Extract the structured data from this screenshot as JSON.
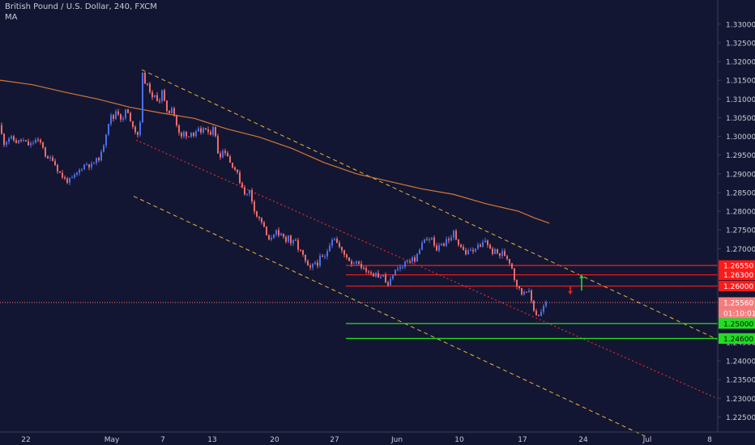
{
  "header": {
    "symbol_line": "British Pound / U.S. Dollar, 240, FXCM",
    "indicator": "MA"
  },
  "colors": {
    "background": "#131632",
    "up_candle": "#4a6fe8",
    "down_candle": "#ef6b6b",
    "ma": "#d3773a",
    "resistance": "#ff1a1a",
    "support": "#22dd22",
    "channel": "#e6b53c",
    "midline": "#ff3030",
    "price_tag": "#f77d7d",
    "axis_text": "#c9cbd6"
  },
  "chart_data": {
    "type": "candlestick",
    "ylim": [
      1.221,
      1.336
    ],
    "x_tick_labels": [
      "22",
      "May",
      "7",
      "13",
      "20",
      "27",
      "Jun",
      "10",
      "17",
      "24",
      "Jul",
      "8"
    ],
    "y_tick_labels": [
      "1.33000",
      "1.32500",
      "1.32000",
      "1.31500",
      "1.31000",
      "1.30500",
      "1.30000",
      "1.29500",
      "1.29000",
      "1.28500",
      "1.28000",
      "1.27500",
      "1.27000",
      "1.26500",
      "1.26000",
      "1.25500",
      "1.25000",
      "1.24500",
      "1.24000",
      "1.23500",
      "1.23000",
      "1.22500"
    ],
    "y_ticks": [
      1.33,
      1.325,
      1.32,
      1.315,
      1.31,
      1.305,
      1.3,
      1.295,
      1.29,
      1.285,
      1.28,
      1.275,
      1.27,
      1.265,
      1.26,
      1.255,
      1.25,
      1.245,
      1.24,
      1.235,
      1.23,
      1.225
    ],
    "price_path": [
      [
        0,
        1.303
      ],
      [
        4,
        1.298
      ],
      [
        12,
        1.2998
      ],
      [
        20,
        1.2985
      ],
      [
        28,
        1.299
      ],
      [
        36,
        1.2975
      ],
      [
        44,
        1.299
      ],
      [
        52,
        1.298
      ],
      [
        58,
        1.2935
      ],
      [
        64,
        1.2945
      ],
      [
        70,
        1.2915
      ],
      [
        76,
        1.2895
      ],
      [
        82,
        1.288
      ],
      [
        88,
        1.2885
      ],
      [
        94,
        1.2898
      ],
      [
        100,
        1.2915
      ],
      [
        106,
        1.2928
      ],
      [
        112,
        1.292
      ],
      [
        118,
        1.2935
      ],
      [
        124,
        1.2945
      ],
      [
        128,
        1.298
      ],
      [
        132,
        1.302
      ],
      [
        136,
        1.3055
      ],
      [
        140,
        1.3048
      ],
      [
        144,
        1.3075
      ],
      [
        148,
        1.305
      ],
      [
        152,
        1.3045
      ],
      [
        156,
        1.308
      ],
      [
        160,
        1.304
      ],
      [
        164,
        1.303
      ],
      [
        168,
        1.301
      ],
      [
        172,
        1.3
      ],
      [
        176,
        1.3165
      ],
      [
        180,
        1.314
      ],
      [
        184,
        1.313
      ],
      [
        188,
        1.31
      ],
      [
        192,
        1.311
      ],
      [
        196,
        1.309
      ],
      [
        200,
        1.312
      ],
      [
        204,
        1.308
      ],
      [
        208,
        1.306
      ],
      [
        212,
        1.308
      ],
      [
        216,
        1.305
      ],
      [
        220,
        1.301
      ],
      [
        224,
        1.2998
      ],
      [
        228,
        1.3015
      ],
      [
        232,
        1.2995
      ],
      [
        236,
        1.3015
      ],
      [
        240,
        1.2998
      ],
      [
        244,
        1.302
      ],
      [
        248,
        1.3005
      ],
      [
        252,
        1.303
      ],
      [
        256,
        1.3005
      ],
      [
        260,
        1.301
      ],
      [
        264,
        1.3035
      ],
      [
        268,
        1.296
      ],
      [
        272,
        1.295
      ],
      [
        276,
        1.2965
      ],
      [
        280,
        1.2955
      ],
      [
        284,
        1.293
      ],
      [
        288,
        1.292
      ],
      [
        292,
        1.2905
      ],
      [
        296,
        1.288
      ],
      [
        300,
        1.286
      ],
      [
        304,
        1.284
      ],
      [
        308,
        1.2855
      ],
      [
        312,
        1.282
      ],
      [
        316,
        1.279
      ],
      [
        320,
        1.278
      ],
      [
        324,
        1.277
      ],
      [
        328,
        1.274
      ],
      [
        332,
        1.272
      ],
      [
        336,
        1.2735
      ],
      [
        340,
        1.275
      ],
      [
        344,
        1.273
      ],
      [
        348,
        1.274
      ],
      [
        352,
        1.272
      ],
      [
        356,
        1.2735
      ],
      [
        360,
        1.271
      ],
      [
        364,
        1.2725
      ],
      [
        368,
        1.27
      ],
      [
        372,
        1.269
      ],
      [
        376,
        1.267
      ],
      [
        380,
        1.265
      ],
      [
        384,
        1.2645
      ],
      [
        388,
        1.2665
      ],
      [
        392,
        1.266
      ],
      [
        396,
        1.268
      ],
      [
        400,
        1.267
      ],
      [
        404,
        1.2695
      ],
      [
        408,
        1.272
      ],
      [
        412,
        1.2735
      ],
      [
        416,
        1.2715
      ],
      [
        420,
        1.27
      ],
      [
        424,
        1.2685
      ],
      [
        428,
        1.268
      ],
      [
        432,
        1.2665
      ],
      [
        436,
        1.266
      ],
      [
        440,
        1.267
      ],
      [
        444,
        1.265
      ],
      [
        448,
        1.2655
      ],
      [
        452,
        1.2635
      ],
      [
        456,
        1.2645
      ],
      [
        460,
        1.2625
      ],
      [
        464,
        1.264
      ],
      [
        468,
        1.262
      ],
      [
        472,
        1.2635
      ],
      [
        476,
        1.261
      ],
      [
        480,
        1.26
      ],
      [
        484,
        1.263
      ],
      [
        488,
        1.264
      ],
      [
        492,
        1.2655
      ],
      [
        496,
        1.2645
      ],
      [
        500,
        1.2665
      ],
      [
        504,
        1.266
      ],
      [
        508,
        1.268
      ],
      [
        512,
        1.2665
      ],
      [
        516,
        1.269
      ],
      [
        520,
        1.271
      ],
      [
        524,
        1.2725
      ],
      [
        528,
        1.2715
      ],
      [
        532,
        1.2735
      ],
      [
        536,
        1.2705
      ],
      [
        540,
        1.2695
      ],
      [
        544,
        1.272
      ],
      [
        548,
        1.271
      ],
      [
        552,
        1.273
      ],
      [
        556,
        1.272
      ],
      [
        560,
        1.2745
      ],
      [
        564,
        1.272
      ],
      [
        568,
        1.271
      ],
      [
        572,
        1.2695
      ],
      [
        576,
        1.2685
      ],
      [
        580,
        1.27
      ],
      [
        584,
        1.269
      ],
      [
        588,
        1.271
      ],
      [
        592,
        1.27
      ],
      [
        596,
        1.2715
      ],
      [
        600,
        1.2725
      ],
      [
        604,
        1.27
      ],
      [
        608,
        1.269
      ],
      [
        612,
        1.2695
      ],
      [
        616,
        1.268
      ],
      [
        620,
        1.269
      ],
      [
        624,
        1.268
      ],
      [
        628,
        1.267
      ],
      [
        632,
        1.265
      ],
      [
        636,
        1.261
      ],
      [
        640,
        1.2595
      ],
      [
        644,
        1.258
      ],
      [
        648,
        1.259
      ],
      [
        652,
        1.259
      ],
      [
        656,
        1.256
      ],
      [
        660,
        1.253
      ],
      [
        664,
        1.252
      ],
      [
        668,
        1.253
      ],
      [
        672,
        1.255
      ],
      [
        676,
        1.2556
      ]
    ],
    "moving_average": [
      [
        0,
        1.315
      ],
      [
        40,
        1.3138
      ],
      [
        80,
        1.3118
      ],
      [
        120,
        1.31
      ],
      [
        160,
        1.3078
      ],
      [
        200,
        1.3062
      ],
      [
        240,
        1.3048
      ],
      [
        280,
        1.302
      ],
      [
        320,
        1.2998
      ],
      [
        360,
        1.2968
      ],
      [
        400,
        1.293
      ],
      [
        440,
        1.29
      ],
      [
        480,
        1.288
      ],
      [
        520,
        1.286
      ],
      [
        560,
        1.2845
      ],
      [
        600,
        1.282
      ],
      [
        640,
        1.28
      ],
      [
        660,
        1.2782
      ],
      [
        678,
        1.2768
      ]
    ],
    "resistance_levels": [
      1.2655,
      1.263,
      1.26
    ],
    "support_levels": [
      1.25,
      1.246
    ],
    "current_price": 1.2556,
    "price_labels": {
      "r1": "1.26550",
      "r2": "1.26300",
      "r3": "1.26000",
      "current": "1.25560",
      "countdown": "01:10:01",
      "s1": "1.25000",
      "s2": "1.24600"
    },
    "channel_upper": {
      "x1": 175,
      "y1": 1.3178,
      "x2": 885,
      "y2": 1.2458
    },
    "channel_lower": {
      "x1": 165,
      "y1": 1.284,
      "x2": 800,
      "y2": 1.2195
    },
    "channel_mid": {
      "x1": 168,
      "y1": 1.299,
      "x2": 885,
      "y2": 1.23
    },
    "arrows": [
      {
        "direction": "up",
        "x": 718,
        "y_from": 1.2588,
        "y_to": 1.263
      },
      {
        "direction": "down",
        "x": 704,
        "y_from": 1.26,
        "y_to": 1.2578
      }
    ],
    "grid": false,
    "legend": "top-left"
  }
}
